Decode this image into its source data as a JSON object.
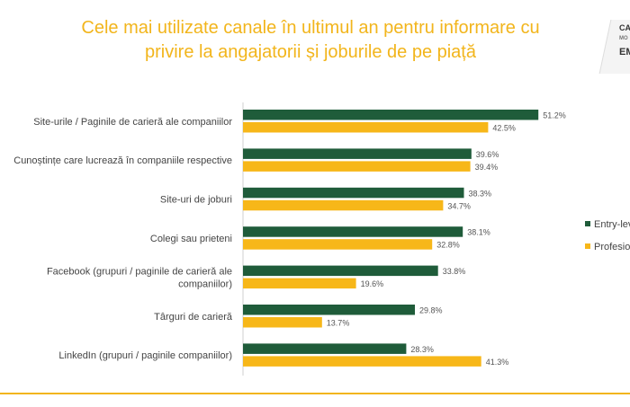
{
  "title_line1": "Cele mai utilizate canale în ultimul an pentru informare cu",
  "title_line2": "privire la angajatorii și joburile de pe piață",
  "logo": {
    "line1": "CA",
    "line2": "MO",
    "line3": "EM"
  },
  "colors": {
    "series1": "#1f5c3a",
    "series2": "#f7b719",
    "title": "#f2b51c"
  },
  "chart_data": {
    "type": "bar",
    "orientation": "horizontal",
    "categories": [
      [
        "Site-urile / Paginile de carieră ale companiilor"
      ],
      [
        "Cunoștințe care lucrează în companiile respective"
      ],
      [
        "Site-uri de joburi"
      ],
      [
        "Colegi sau prieteni"
      ],
      [
        "Facebook (grupuri / paginile de carieră ale",
        "companiilor)"
      ],
      [
        "Târguri de carieră"
      ],
      [
        "LinkedIn (grupuri / paginile companiilor)"
      ]
    ],
    "series": [
      {
        "name": "Entry-level",
        "values": [
          51.2,
          39.6,
          38.3,
          38.1,
          33.8,
          29.8,
          28.3
        ]
      },
      {
        "name": "Profesioniști",
        "values": [
          42.5,
          39.4,
          34.7,
          32.8,
          19.6,
          13.7,
          41.3
        ]
      }
    ],
    "value_labels": [
      [
        "51.2%",
        "39.6%",
        "38.3%",
        "38.1%",
        "33.8%",
        "29.8%",
        "28.3%"
      ],
      [
        "42.5%",
        "39.4%",
        "34.7%",
        "32.8%",
        "19.6%",
        "13.7%",
        "41.3%"
      ]
    ],
    "legend": [
      "Entry-level",
      "Profesioniști"
    ],
    "legend_position": "right",
    "grid": false
  }
}
